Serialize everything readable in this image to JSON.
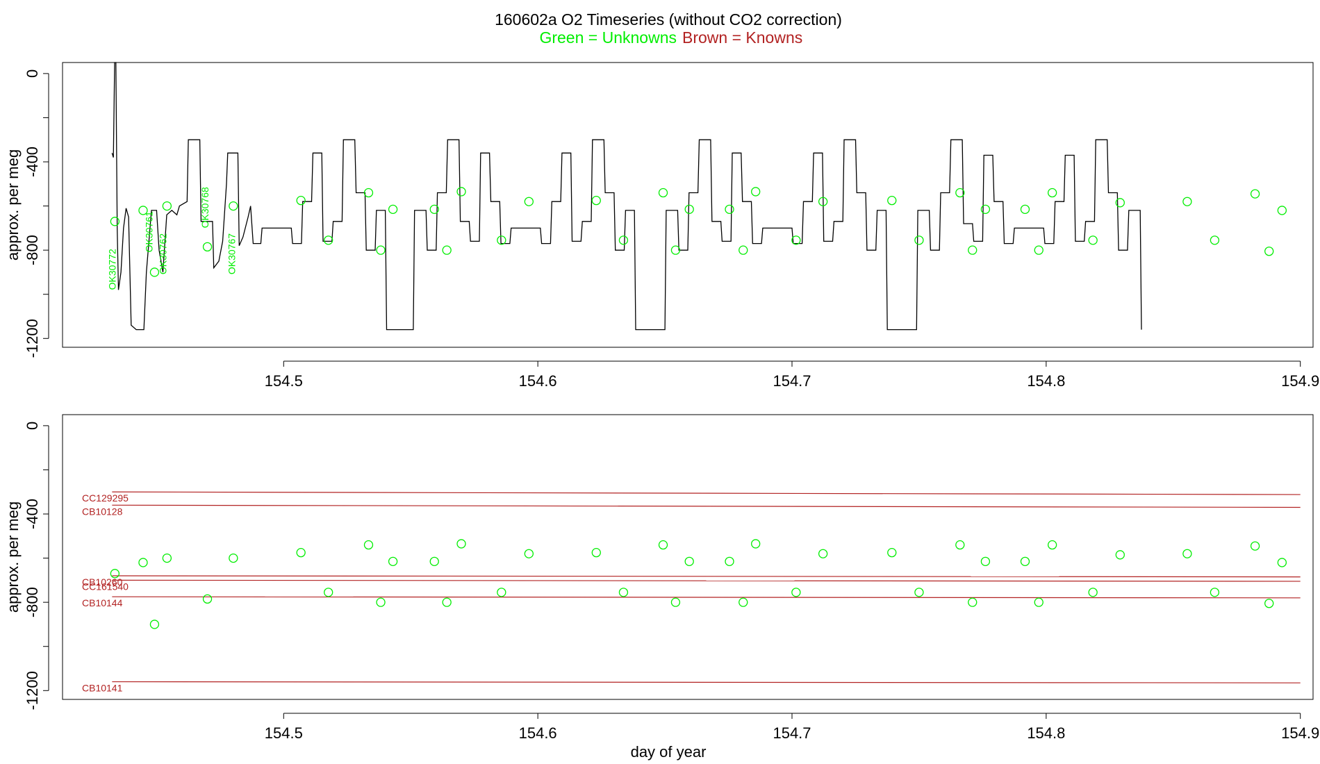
{
  "chart_data": {
    "type": "scatter",
    "title": "160602a   O2 Timeseries (without CO2 correction)",
    "legend": {
      "unknowns_label": "Green = Unknowns",
      "knowns_label": "Brown = Knowns",
      "unknowns_color": "#00ee00",
      "knowns_color": "#b22222"
    },
    "xlabel": "day of year",
    "xlim": [
      154.413,
      154.905
    ],
    "x_ticks": [
      154.5,
      154.6,
      154.7,
      154.8,
      154.9
    ],
    "x_tick_labels": [
      "154.5",
      "154.6",
      "154.7",
      "154.8",
      "154.9"
    ],
    "panels": [
      {
        "ylabel": "approx. per meg",
        "ylim": [
          -1240,
          50
        ],
        "y_ticks": [
          0,
          -400,
          -800,
          -1200
        ],
        "y_tick_labels": [
          "0",
          "-400",
          "-800",
          "-1200"
        ],
        "trace_color": "#000000",
        "trace": [
          [
            154.4325,
            -360
          ],
          [
            154.433,
            -380
          ],
          [
            154.4335,
            50
          ],
          [
            154.434,
            50
          ],
          [
            154.4345,
            -700
          ],
          [
            154.435,
            -980
          ],
          [
            154.436,
            -900
          ],
          [
            154.437,
            -700
          ],
          [
            154.438,
            -610
          ],
          [
            154.439,
            -650
          ],
          [
            154.44,
            -1140
          ],
          [
            154.442,
            -1160
          ],
          [
            154.445,
            -1160
          ],
          [
            154.446,
            -900
          ],
          [
            154.448,
            -620
          ],
          [
            154.45,
            -620
          ],
          [
            154.451,
            -800
          ],
          [
            154.4525,
            -900
          ],
          [
            154.454,
            -640
          ],
          [
            154.456,
            -620
          ],
          [
            154.458,
            -640
          ],
          [
            154.459,
            -600
          ],
          [
            154.462,
            -580
          ],
          [
            154.4625,
            -300
          ],
          [
            154.467,
            -300
          ],
          [
            154.4675,
            -670
          ],
          [
            154.472,
            -670
          ],
          [
            154.4725,
            -880
          ],
          [
            154.4745,
            -850
          ],
          [
            154.476,
            -760
          ],
          [
            154.4775,
            -500
          ],
          [
            154.478,
            -360
          ],
          [
            154.482,
            -360
          ],
          [
            154.4825,
            -780
          ],
          [
            154.484,
            -740
          ],
          [
            154.486,
            -650
          ],
          [
            154.487,
            -600
          ],
          [
            154.488,
            -770
          ],
          [
            154.491,
            -770
          ],
          [
            154.4915,
            -700
          ],
          [
            154.503,
            -700
          ],
          [
            154.5035,
            -770
          ],
          [
            154.507,
            -770
          ],
          [
            154.5075,
            -580
          ],
          [
            154.511,
            -580
          ],
          [
            154.5115,
            -360
          ],
          [
            154.515,
            -360
          ],
          [
            154.5155,
            -760
          ],
          [
            154.519,
            -760
          ],
          [
            154.5195,
            -670
          ],
          [
            154.523,
            -670
          ],
          [
            154.5235,
            -300
          ],
          [
            154.528,
            -300
          ],
          [
            154.5285,
            -540
          ],
          [
            154.532,
            -540
          ],
          [
            154.5325,
            -800
          ],
          [
            154.536,
            -800
          ],
          [
            154.5365,
            -620
          ],
          [
            154.54,
            -620
          ],
          [
            154.5405,
            -1160
          ],
          [
            154.551,
            -1160
          ],
          [
            154.5515,
            -620
          ],
          [
            154.556,
            -620
          ],
          [
            154.5565,
            -800
          ],
          [
            154.56,
            -800
          ],
          [
            154.5605,
            -540
          ],
          [
            154.564,
            -540
          ],
          [
            154.5645,
            -300
          ],
          [
            154.569,
            -300
          ],
          [
            154.5695,
            -670
          ],
          [
            154.573,
            -670
          ],
          [
            154.5735,
            -760
          ],
          [
            154.577,
            -760
          ],
          [
            154.5775,
            -360
          ],
          [
            154.581,
            -360
          ],
          [
            154.5815,
            -580
          ],
          [
            154.585,
            -580
          ],
          [
            154.5855,
            -770
          ],
          [
            154.589,
            -770
          ],
          [
            154.5895,
            -700
          ],
          [
            154.601,
            -700
          ],
          [
            154.6015,
            -770
          ],
          [
            154.605,
            -770
          ],
          [
            154.6055,
            -580
          ],
          [
            154.609,
            -580
          ],
          [
            154.6095,
            -360
          ],
          [
            154.613,
            -360
          ],
          [
            154.6135,
            -760
          ],
          [
            154.617,
            -760
          ],
          [
            154.6175,
            -670
          ],
          [
            154.621,
            -670
          ],
          [
            154.6215,
            -300
          ],
          [
            154.626,
            -300
          ],
          [
            154.6265,
            -540
          ],
          [
            154.63,
            -540
          ],
          [
            154.6305,
            -800
          ],
          [
            154.634,
            -800
          ],
          [
            154.6345,
            -620
          ],
          [
            154.638,
            -620
          ],
          [
            154.6385,
            -1160
          ],
          [
            154.65,
            -1160
          ],
          [
            154.6505,
            -620
          ],
          [
            154.655,
            -620
          ],
          [
            154.6555,
            -800
          ],
          [
            154.659,
            -800
          ],
          [
            154.6595,
            -540
          ],
          [
            154.663,
            -540
          ],
          [
            154.6635,
            -300
          ],
          [
            154.668,
            -300
          ],
          [
            154.6685,
            -670
          ],
          [
            154.672,
            -670
          ],
          [
            154.6725,
            -760
          ],
          [
            154.676,
            -760
          ],
          [
            154.6765,
            -360
          ],
          [
            154.68,
            -360
          ],
          [
            154.6805,
            -580
          ],
          [
            154.684,
            -580
          ],
          [
            154.6845,
            -770
          ],
          [
            154.688,
            -770
          ],
          [
            154.6885,
            -700
          ],
          [
            154.7,
            -700
          ],
          [
            154.7005,
            -770
          ],
          [
            154.704,
            -770
          ],
          [
            154.7045,
            -580
          ],
          [
            154.708,
            -580
          ],
          [
            154.7085,
            -360
          ],
          [
            154.712,
            -360
          ],
          [
            154.7125,
            -760
          ],
          [
            154.716,
            -760
          ],
          [
            154.7165,
            -670
          ],
          [
            154.72,
            -670
          ],
          [
            154.7205,
            -300
          ],
          [
            154.725,
            -300
          ],
          [
            154.7255,
            -540
          ],
          [
            154.729,
            -540
          ],
          [
            154.7295,
            -800
          ],
          [
            154.733,
            -800
          ],
          [
            154.7335,
            -620
          ],
          [
            154.737,
            -620
          ],
          [
            154.7375,
            -1160
          ],
          [
            154.749,
            -1160
          ],
          [
            154.7495,
            -620
          ],
          [
            154.754,
            -620
          ],
          [
            154.7545,
            -800
          ],
          [
            154.758,
            -800
          ],
          [
            154.7585,
            -540
          ],
          [
            154.762,
            -540
          ],
          [
            154.7625,
            -300
          ],
          [
            154.767,
            -300
          ],
          [
            154.7675,
            -680
          ],
          [
            154.771,
            -680
          ],
          [
            154.7715,
            -760
          ],
          [
            154.775,
            -760
          ],
          [
            154.7755,
            -370
          ],
          [
            154.779,
            -370
          ],
          [
            154.7795,
            -580
          ],
          [
            154.783,
            -580
          ],
          [
            154.7835,
            -770
          ],
          [
            154.787,
            -770
          ],
          [
            154.7875,
            -700
          ],
          [
            154.799,
            -700
          ],
          [
            154.7995,
            -770
          ],
          [
            154.803,
            -770
          ],
          [
            154.8035,
            -580
          ],
          [
            154.807,
            -580
          ],
          [
            154.8075,
            -370
          ],
          [
            154.811,
            -370
          ],
          [
            154.8115,
            -760
          ],
          [
            154.815,
            -760
          ],
          [
            154.8155,
            -670
          ],
          [
            154.819,
            -670
          ],
          [
            154.8195,
            -300
          ],
          [
            154.824,
            -300
          ],
          [
            154.8245,
            -540
          ],
          [
            154.828,
            -540
          ],
          [
            154.8285,
            -800
          ],
          [
            154.832,
            -800
          ],
          [
            154.8325,
            -620
          ],
          [
            154.837,
            -620
          ],
          [
            154.8375,
            -1160
          ]
        ],
        "unknown_points": [
          [
            154.4336,
            -670
          ],
          [
            154.4447,
            -620
          ],
          [
            154.4492,
            -900
          ],
          [
            154.4541,
            -600
          ],
          [
            154.47,
            -785
          ],
          [
            154.4802,
            -600
          ],
          [
            154.5068,
            -575
          ],
          [
            154.5176,
            -755
          ],
          [
            154.5334,
            -540
          ],
          [
            154.5382,
            -800
          ],
          [
            154.543,
            -615
          ],
          [
            154.5593,
            -615
          ],
          [
            154.5642,
            -800
          ],
          [
            154.5699,
            -535
          ],
          [
            154.5857,
            -755
          ],
          [
            154.5965,
            -580
          ],
          [
            154.623,
            -575
          ],
          [
            154.6337,
            -755
          ],
          [
            154.6493,
            -540
          ],
          [
            154.6542,
            -800
          ],
          [
            154.6596,
            -615
          ],
          [
            154.6754,
            -615
          ],
          [
            154.6808,
            -800
          ],
          [
            154.6857,
            -535
          ],
          [
            154.7016,
            -755
          ],
          [
            154.7122,
            -580
          ],
          [
            154.7393,
            -575
          ],
          [
            154.75,
            -755
          ],
          [
            154.7661,
            -540
          ],
          [
            154.771,
            -800
          ],
          [
            154.7761,
            -615
          ],
          [
            154.7917,
            -615
          ],
          [
            154.7971,
            -800
          ],
          [
            154.8024,
            -540
          ],
          [
            154.8184,
            -755
          ],
          [
            154.8291,
            -585
          ],
          [
            154.8555,
            -580
          ],
          [
            154.8663,
            -755
          ],
          [
            154.8822,
            -545
          ],
          [
            154.8877,
            -805
          ],
          [
            154.8928,
            -620
          ]
        ],
        "unknown_labels": [
          {
            "text": "OK30772",
            "x": 154.4325,
            "y": -980
          },
          {
            "text": "OK30761",
            "x": 154.447,
            "y": -810
          },
          {
            "text": "OK30762",
            "x": 154.4525,
            "y": -910
          },
          {
            "text": "OK30768",
            "x": 154.469,
            "y": -700
          },
          {
            "text": "OK30767",
            "x": 154.4795,
            "y": -910
          }
        ]
      },
      {
        "ylabel": "approx. per meg",
        "ylim": [
          -1240,
          50
        ],
        "y_ticks": [
          0,
          -400,
          -800,
          -1200
        ],
        "y_tick_labels": [
          "0",
          "-400",
          "-800",
          "-1200"
        ],
        "known_lines": [
          {
            "name": "CC129295",
            "y_start": -300,
            "y_end": -312
          },
          {
            "name": "CB10128",
            "y_start": -360,
            "y_end": -370
          },
          {
            "name": "CB10260",
            "y_start": -680,
            "y_end": -685
          },
          {
            "name": "CC161540",
            "y_start": -700,
            "y_end": -705
          },
          {
            "name": "CB10144",
            "y_start": -775,
            "y_end": -780
          },
          {
            "name": "CB10141",
            "y_start": -1160,
            "y_end": -1165
          }
        ],
        "known_lines_xrange": [
          154.4325,
          154.9
        ],
        "unknown_points": [
          [
            154.4336,
            -670
          ],
          [
            154.4447,
            -620
          ],
          [
            154.4492,
            -900
          ],
          [
            154.4541,
            -600
          ],
          [
            154.47,
            -785
          ],
          [
            154.4802,
            -600
          ],
          [
            154.5068,
            -575
          ],
          [
            154.5176,
            -755
          ],
          [
            154.5334,
            -540
          ],
          [
            154.5382,
            -800
          ],
          [
            154.543,
            -615
          ],
          [
            154.5593,
            -615
          ],
          [
            154.5642,
            -800
          ],
          [
            154.5699,
            -535
          ],
          [
            154.5857,
            -755
          ],
          [
            154.5965,
            -580
          ],
          [
            154.623,
            -575
          ],
          [
            154.6337,
            -755
          ],
          [
            154.6493,
            -540
          ],
          [
            154.6542,
            -800
          ],
          [
            154.6596,
            -615
          ],
          [
            154.6754,
            -615
          ],
          [
            154.6808,
            -800
          ],
          [
            154.6857,
            -535
          ],
          [
            154.7016,
            -755
          ],
          [
            154.7122,
            -580
          ],
          [
            154.7393,
            -575
          ],
          [
            154.75,
            -755
          ],
          [
            154.7661,
            -540
          ],
          [
            154.771,
            -800
          ],
          [
            154.7761,
            -615
          ],
          [
            154.7917,
            -615
          ],
          [
            154.7971,
            -800
          ],
          [
            154.8024,
            -540
          ],
          [
            154.8184,
            -755
          ],
          [
            154.8291,
            -585
          ],
          [
            154.8555,
            -580
          ],
          [
            154.8663,
            -755
          ],
          [
            154.8822,
            -545
          ],
          [
            154.8877,
            -805
          ],
          [
            154.8928,
            -620
          ]
        ]
      }
    ]
  }
}
